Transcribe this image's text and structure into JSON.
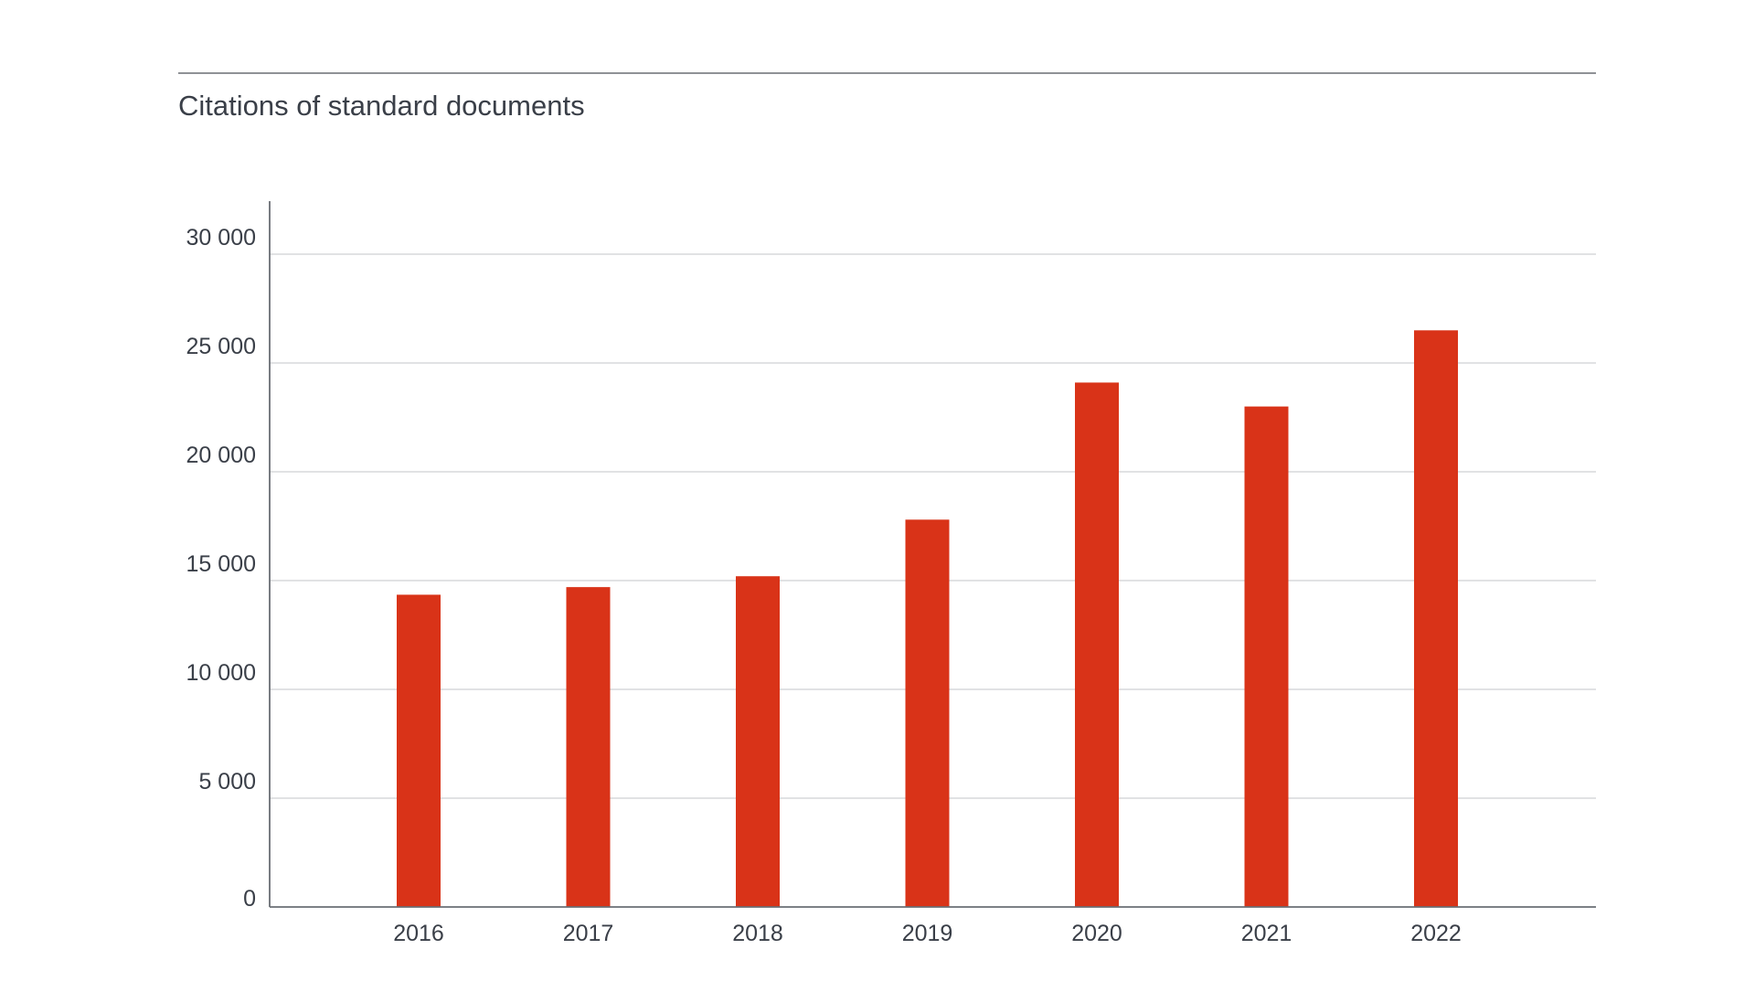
{
  "colors": {
    "bar": "#d93318",
    "text": "#3a3f48",
    "axis": "#6a6e74",
    "grid": "#cfd1d4",
    "rule": "#6a6e74"
  },
  "chart_data": {
    "type": "bar",
    "title": "Citations of standard documents",
    "xlabel": "",
    "ylabel": "",
    "categories": [
      "2016",
      "2017",
      "2018",
      "2019",
      "2020",
      "2021",
      "2022"
    ],
    "values": [
      14350,
      14700,
      15200,
      17800,
      24100,
      23000,
      26500
    ],
    "ylim": [
      0,
      30000
    ],
    "yticks": [
      0,
      5000,
      10000,
      15000,
      20000,
      25000,
      30000
    ],
    "ytick_labels": [
      "0",
      "5 000",
      "10 000",
      "15 000",
      "20 000",
      "25 000",
      "30 000"
    ],
    "grid": true,
    "legend": "none"
  }
}
